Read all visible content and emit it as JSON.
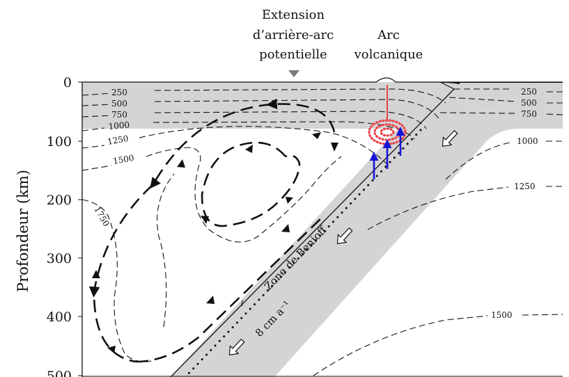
{
  "diagram": {
    "y_axis_label": "Profondeur (km)",
    "y_ticks": [
      "0",
      "100",
      "200",
      "300",
      "400",
      "500"
    ],
    "labels": {
      "backarc_line1": "Extension",
      "backarc_line2": "d’arrière-arc",
      "backarc_line3": "potentielle",
      "arc_line1": "Arc",
      "arc_line2": "volcanique",
      "benioff": "Zone de Benioff",
      "rate": "8 cm a⁻¹"
    },
    "isotherms_left": [
      "250",
      "500",
      "750",
      "1000",
      "1250",
      "1500",
      "1750"
    ],
    "isotherms_right": [
      "250",
      "500",
      "750",
      "1000",
      "1250",
      "1500"
    ],
    "colors": {
      "plate_fill": "#d4d4d4",
      "melt": "#e8444a",
      "magma_arrows": "#1515d8",
      "lines": "#111111"
    },
    "icons": [
      "backarc-marker-triangle",
      "subduction-direction-arrow"
    ]
  }
}
